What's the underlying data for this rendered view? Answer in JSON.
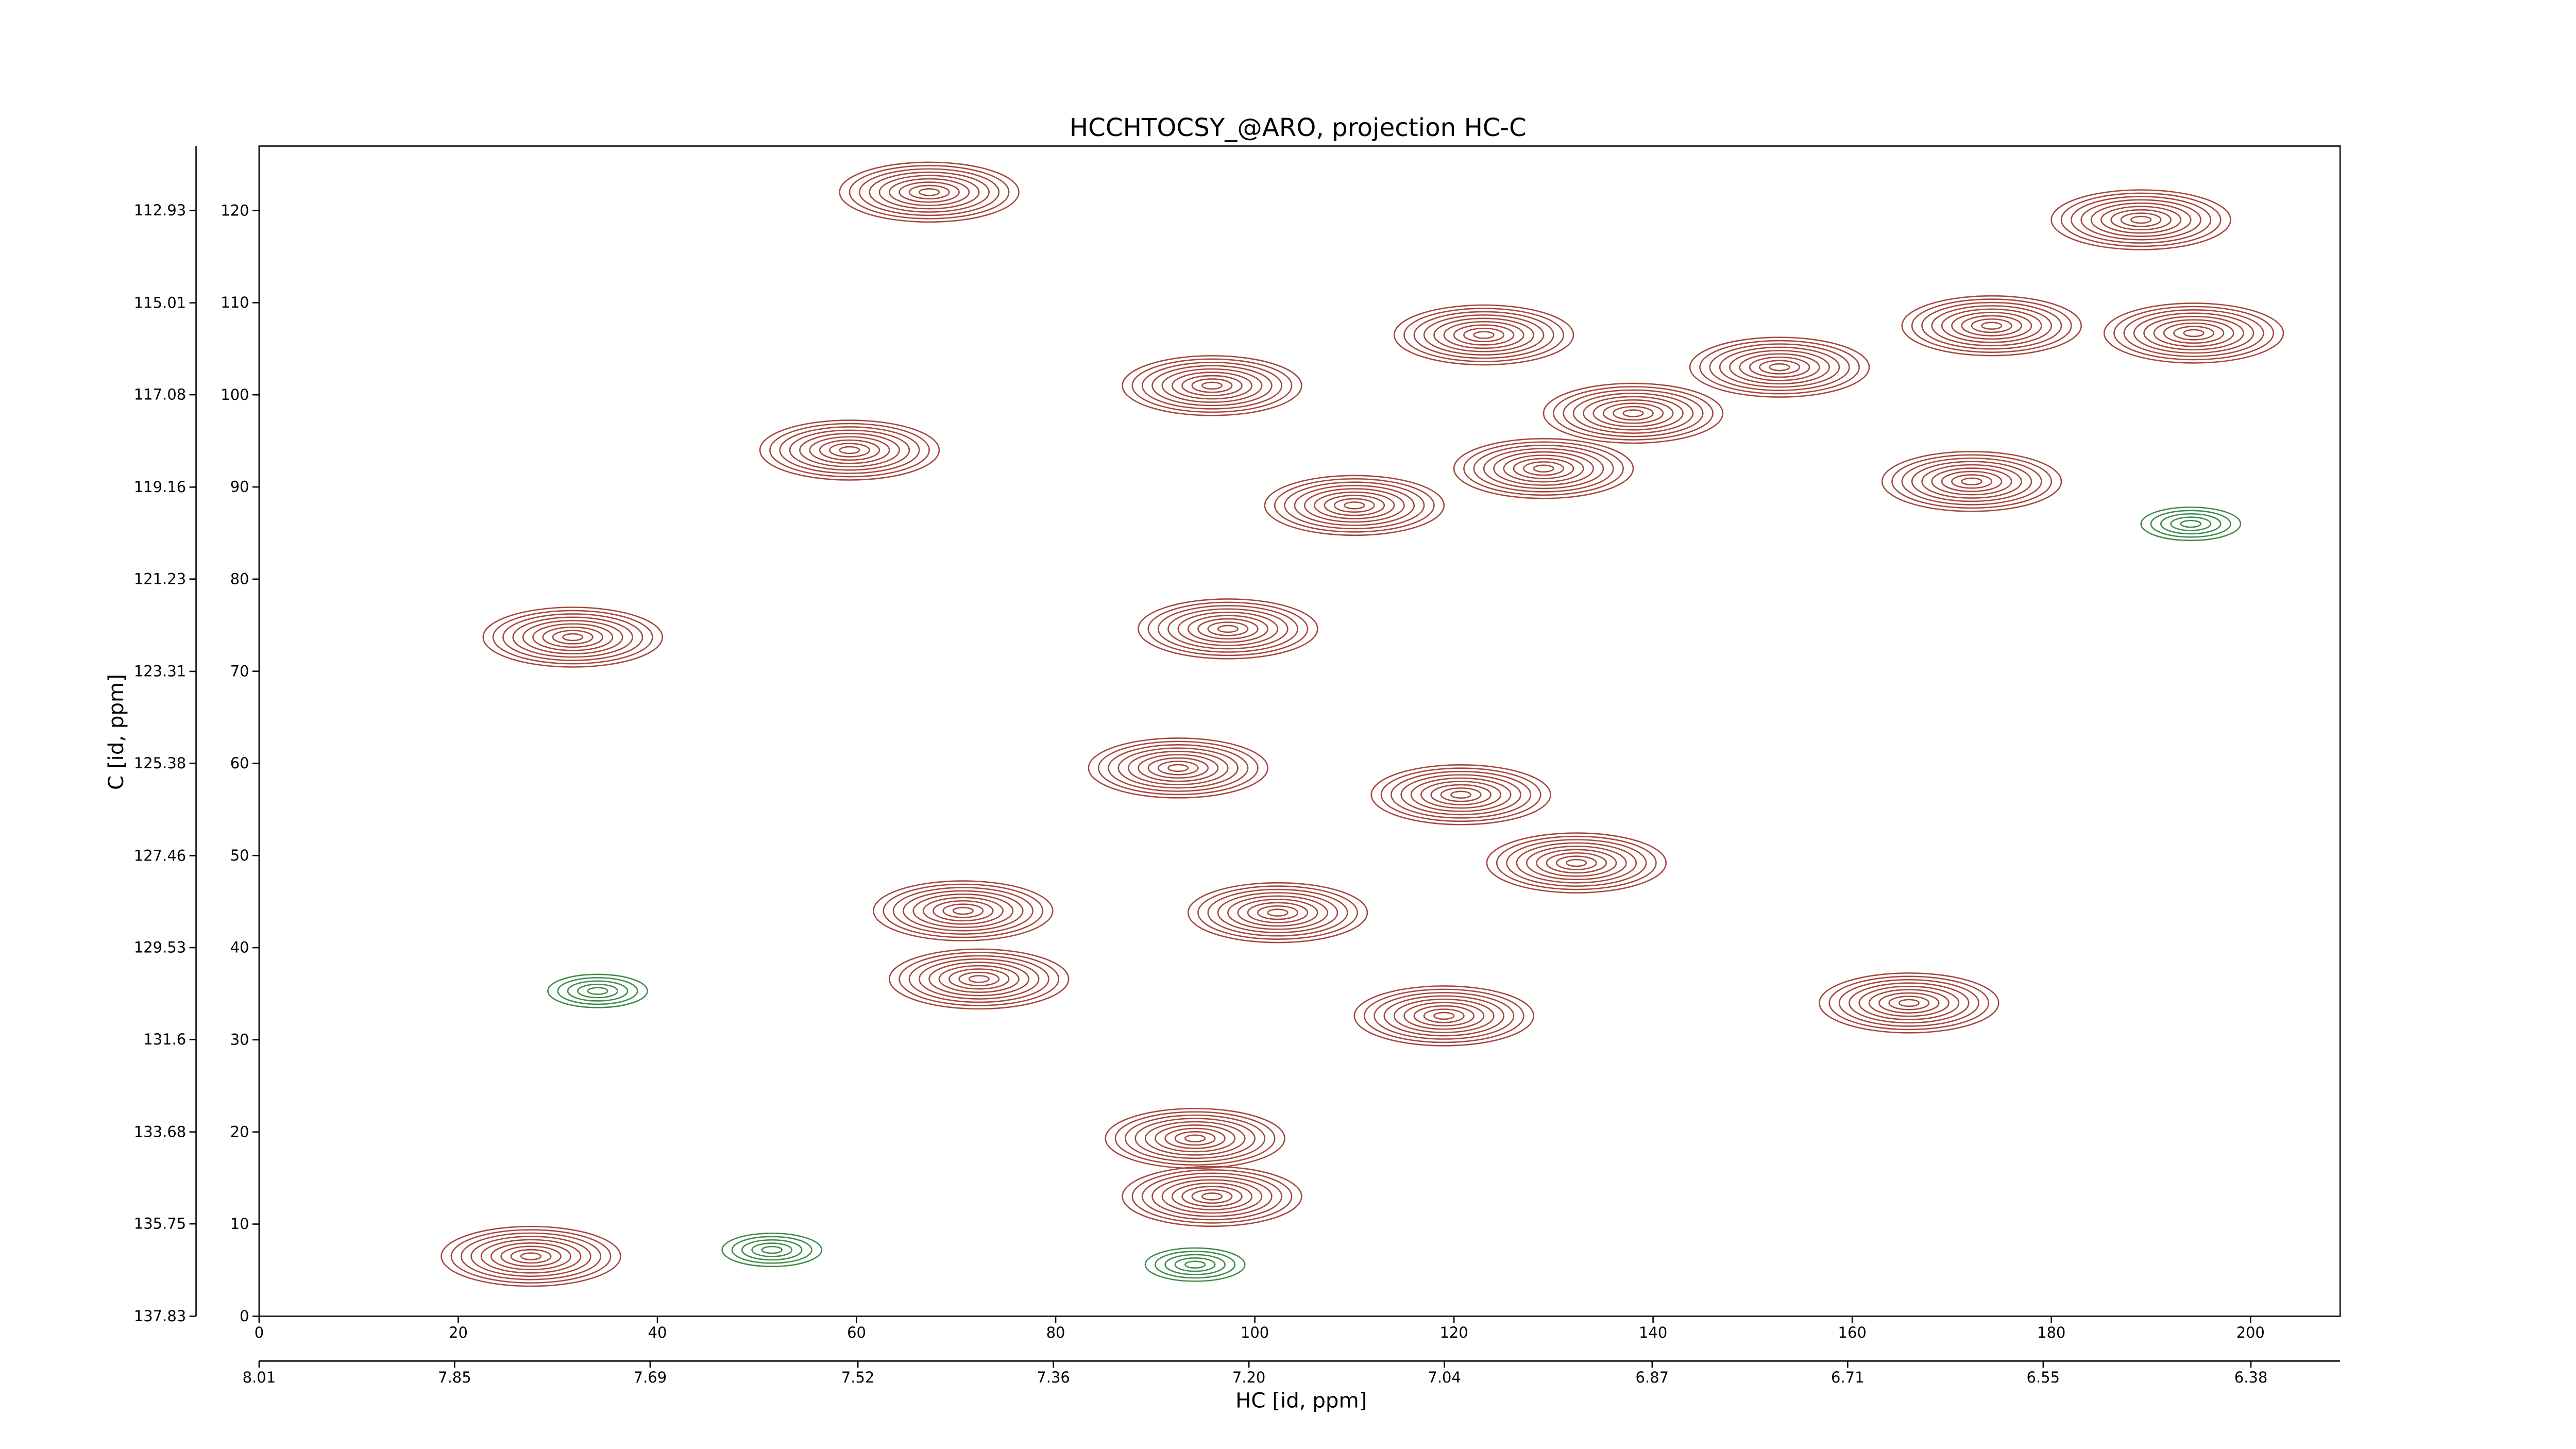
{
  "chart_data": {
    "type": "contour",
    "title": "HCCHTOCSY_@ARO, projection HC-C",
    "x_label": "HC [id, ppm]",
    "y_label": "C [id, ppm]",
    "xlim": [
      0,
      209
    ],
    "ylim": [
      0,
      127
    ],
    "xticks": [
      0,
      20,
      40,
      60,
      80,
      100,
      120,
      140,
      160,
      180,
      200
    ],
    "yticks": [
      0,
      10,
      20,
      30,
      40,
      50,
      60,
      70,
      80,
      90,
      100,
      110,
      120
    ],
    "x2lim": [
      8.01,
      6.307
    ],
    "x2ticks": [
      8.01,
      7.85,
      7.69,
      7.52,
      7.36,
      {
        "value": 7.2,
        "label": "7.20"
      },
      7.04,
      6.87,
      6.71,
      6.55,
      6.38
    ],
    "y2lim": [
      137.83,
      111.48
    ],
    "y2ticks": [
      137.83,
      135.75,
      133.68,
      131.6,
      129.53,
      127.46,
      125.38,
      123.31,
      121.23,
      119.16,
      117.08,
      115.01,
      112.93
    ],
    "series": [
      {
        "color": "#a5473d",
        "x": [
          67.3,
          95.7,
          123,
          152.7,
          174,
          194.3,
          138,
          129,
          172,
          110,
          59.3,
          31.5,
          97.3,
          92.3,
          120.7,
          132.3,
          102.3,
          70.7,
          72.3,
          119,
          165.7,
          95.7,
          94,
          27.3,
          189
        ],
        "values": [
          122,
          101,
          106.5,
          103,
          107.5,
          106.7,
          98,
          92,
          90.6,
          88,
          94,
          73.7,
          74.6,
          59.5,
          56.6,
          49.2,
          43.8,
          44,
          36.6,
          32.6,
          34,
          13,
          19.3,
          6.5,
          119
        ]
      },
      {
        "color": "#3f8a4a",
        "x": [
          34,
          51.5,
          94,
          194
        ],
        "values": [
          35.3,
          7.2,
          5.6,
          86
        ]
      }
    ]
  }
}
